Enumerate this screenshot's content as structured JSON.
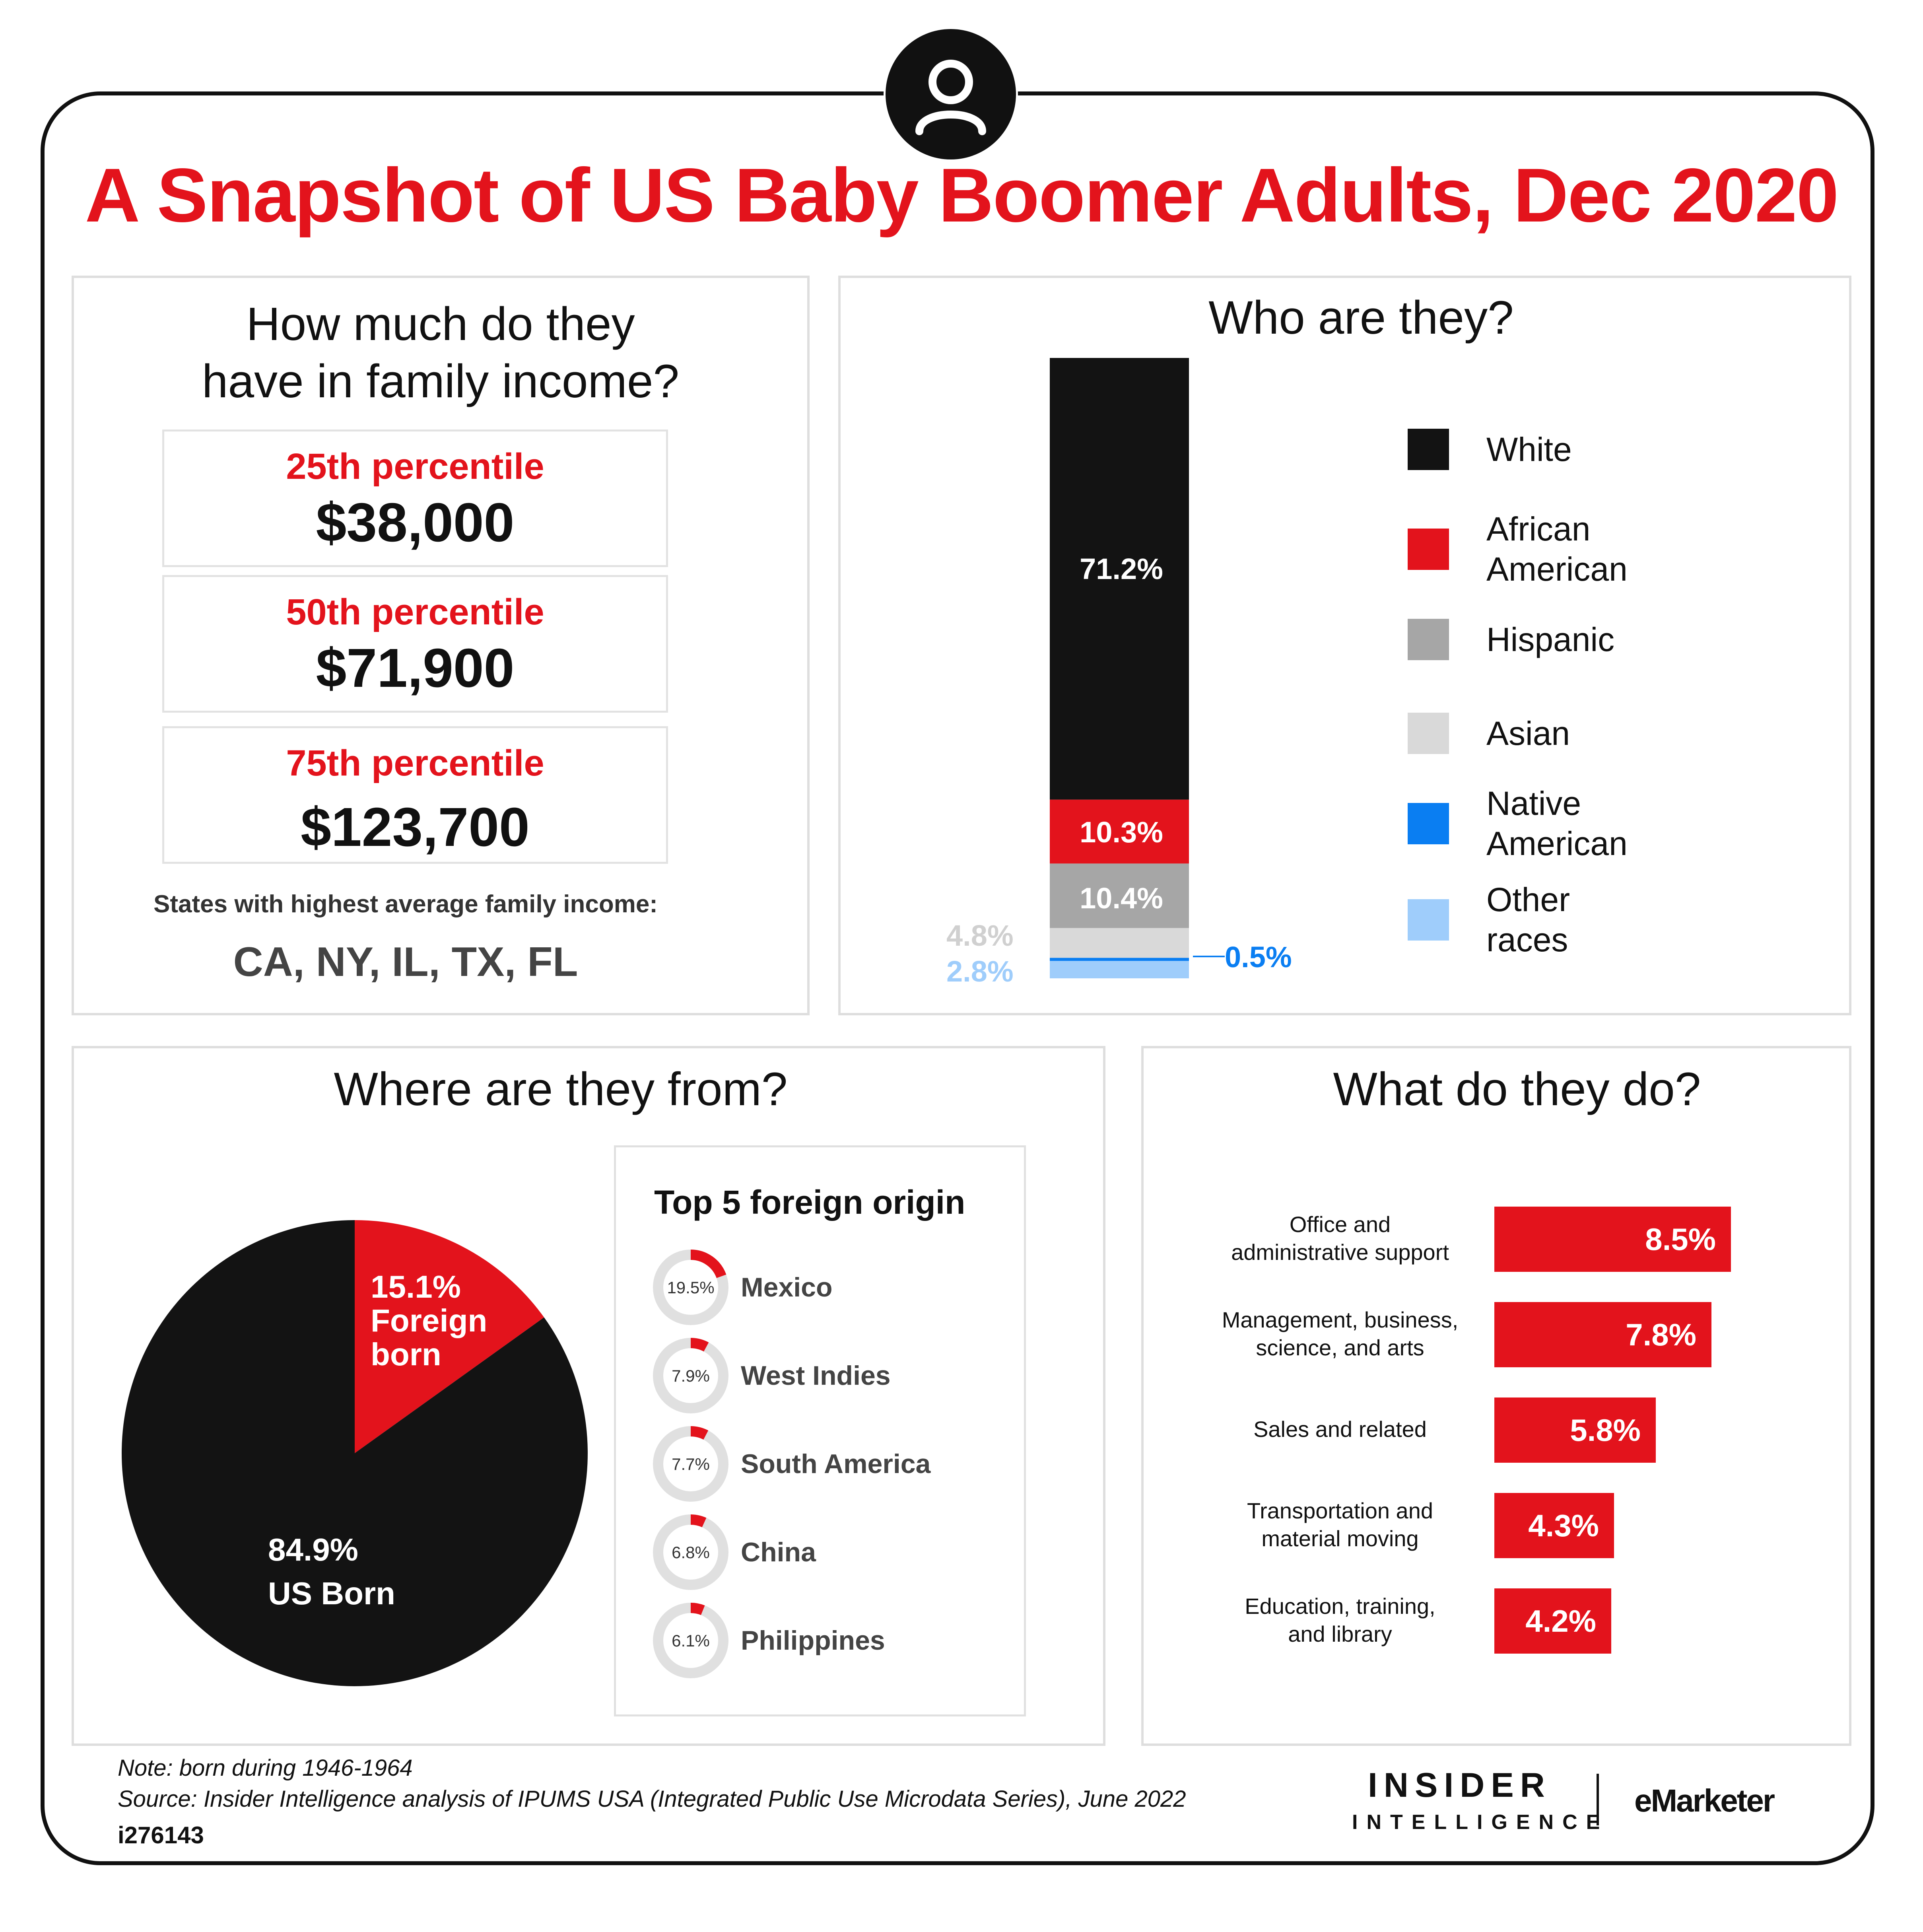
{
  "title": "A Snapshot of US Baby Boomer Adults, Dec 2020",
  "icons": {
    "header": "user-icon"
  },
  "colors": {
    "accent_red": "#e3131c",
    "black": "#131313",
    "hispanic_gray": "#a6a6a6",
    "asian_gray": "#d9d9d9",
    "native_blue": "#0a7ef2",
    "other_light_blue": "#9fcdfb",
    "ring_gray": "#e0e0e0"
  },
  "income": {
    "heading_line1": "How much do they",
    "heading_line2": "have in family income?",
    "percentiles": [
      {
        "label": "25th percentile",
        "value": "$38,000"
      },
      {
        "label": "50th percentile",
        "value": "$71,900"
      },
      {
        "label": "75th percentile",
        "value": "$123,700"
      }
    ],
    "states_label": "States with highest average family income:",
    "states_value": "CA, NY, IL, TX, FL"
  },
  "race": {
    "heading": "Who are they?",
    "legend": [
      {
        "line1": "White",
        "line2": ""
      },
      {
        "line1": "African",
        "line2": "American"
      },
      {
        "line1": "Hispanic",
        "line2": ""
      },
      {
        "line1": "Asian",
        "line2": ""
      },
      {
        "line1": "Native",
        "line2": "American"
      },
      {
        "line1": "Other",
        "line2": "races"
      }
    ]
  },
  "origin": {
    "heading": "Where are they from?",
    "box_title": "Top 5 foreign origin"
  },
  "occupation": {
    "heading": "What do they do?",
    "labels": [
      {
        "line1": "Office and",
        "line2": "administrative support"
      },
      {
        "line1": "Management, business,",
        "line2": "science, and arts"
      },
      {
        "line1": "Sales and related",
        "line2": ""
      },
      {
        "line1": "Transportation and",
        "line2": "material moving"
      },
      {
        "line1": "Education, training,",
        "line2": "and library"
      }
    ]
  },
  "footer": {
    "note": "Note: born during 1946-1964",
    "source": "Source: Insider Intelligence analysis of IPUMS USA (Integrated Public Use Microdata Series), June 2022",
    "id": "i276143",
    "logo_insider": "INSIDER",
    "logo_intelligence": "INTELLIGENCE",
    "logo_emarketer": "eMarketer"
  },
  "chart_data": [
    {
      "type": "bar",
      "stacked": true,
      "ylim": [
        0,
        100
      ],
      "series": [
        {
          "name": "White",
          "values": [
            71.2
          ],
          "label": "71.2%"
        },
        {
          "name": "African American",
          "values": [
            10.3
          ],
          "label": "10.3%"
        },
        {
          "name": "Hispanic",
          "values": [
            10.4
          ],
          "label": "10.4%"
        },
        {
          "name": "Asian",
          "values": [
            4.8
          ],
          "label": "4.8%"
        },
        {
          "name": "Native American",
          "values": [
            0.5
          ],
          "label": "0.5%"
        },
        {
          "name": "Other races",
          "values": [
            2.8
          ],
          "label": "2.8%"
        }
      ]
    },
    {
      "type": "pie",
      "slices": [
        {
          "name": "Foreign born",
          "label_line1": "15.1%",
          "label_line2": "Foreign",
          "label_line3": "born",
          "value": 15.1
        },
        {
          "name": "US Born",
          "label_line1": "84.9%",
          "label_line2": "US Born",
          "value": 84.9
        }
      ]
    },
    {
      "type": "pie",
      "variant": "donut-list",
      "items": [
        {
          "name": "Mexico",
          "value": 19.5,
          "label": "19.5%"
        },
        {
          "name": "West Indies",
          "value": 7.9,
          "label": "7.9%"
        },
        {
          "name": "South America",
          "value": 7.7,
          "label": "7.7%"
        },
        {
          "name": "China",
          "value": 6.8,
          "label": "6.8%"
        },
        {
          "name": "Philippines",
          "value": 6.1,
          "label": "6.1%"
        }
      ]
    },
    {
      "type": "bar",
      "orientation": "horizontal",
      "categories": [
        "Office and administrative support",
        "Management, business, science, and arts",
        "Sales and related",
        "Transportation and material moving",
        "Education, training, and library"
      ],
      "values": [
        8.5,
        7.8,
        5.8,
        4.3,
        4.2
      ],
      "value_labels": [
        "8.5%",
        "7.8%",
        "5.8%",
        "4.3%",
        "4.2%"
      ]
    }
  ]
}
